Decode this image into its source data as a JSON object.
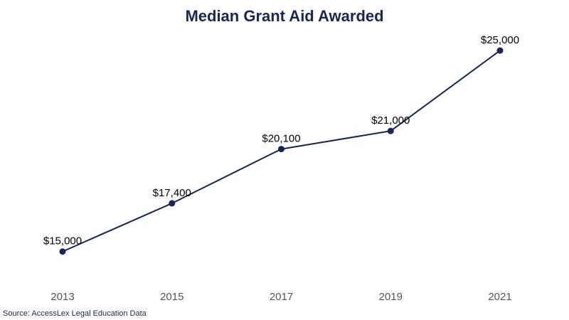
{
  "chart_data": {
    "type": "line",
    "title": "Median Grant Aid Awarded",
    "xlabel": "",
    "ylabel": "",
    "categories": [
      "2013",
      "2015",
      "2017",
      "2019",
      "2021"
    ],
    "series": [
      {
        "values": [
          15000,
          17400,
          20100,
          21000,
          25000
        ],
        "data_labels": [
          "$15,000",
          "$17,400",
          "$20,100",
          "$21,000",
          "$25,000"
        ]
      }
    ],
    "ylim": [
      14000,
      26100
    ],
    "grid": false,
    "legend": "none",
    "colors": {
      "line": "#1a2651",
      "marker": "#1a2651",
      "title": "#1a2651",
      "tick_label": "#555555",
      "data_label": "#000000"
    }
  },
  "source_note": "Source: AccessLex Legal Education Data"
}
